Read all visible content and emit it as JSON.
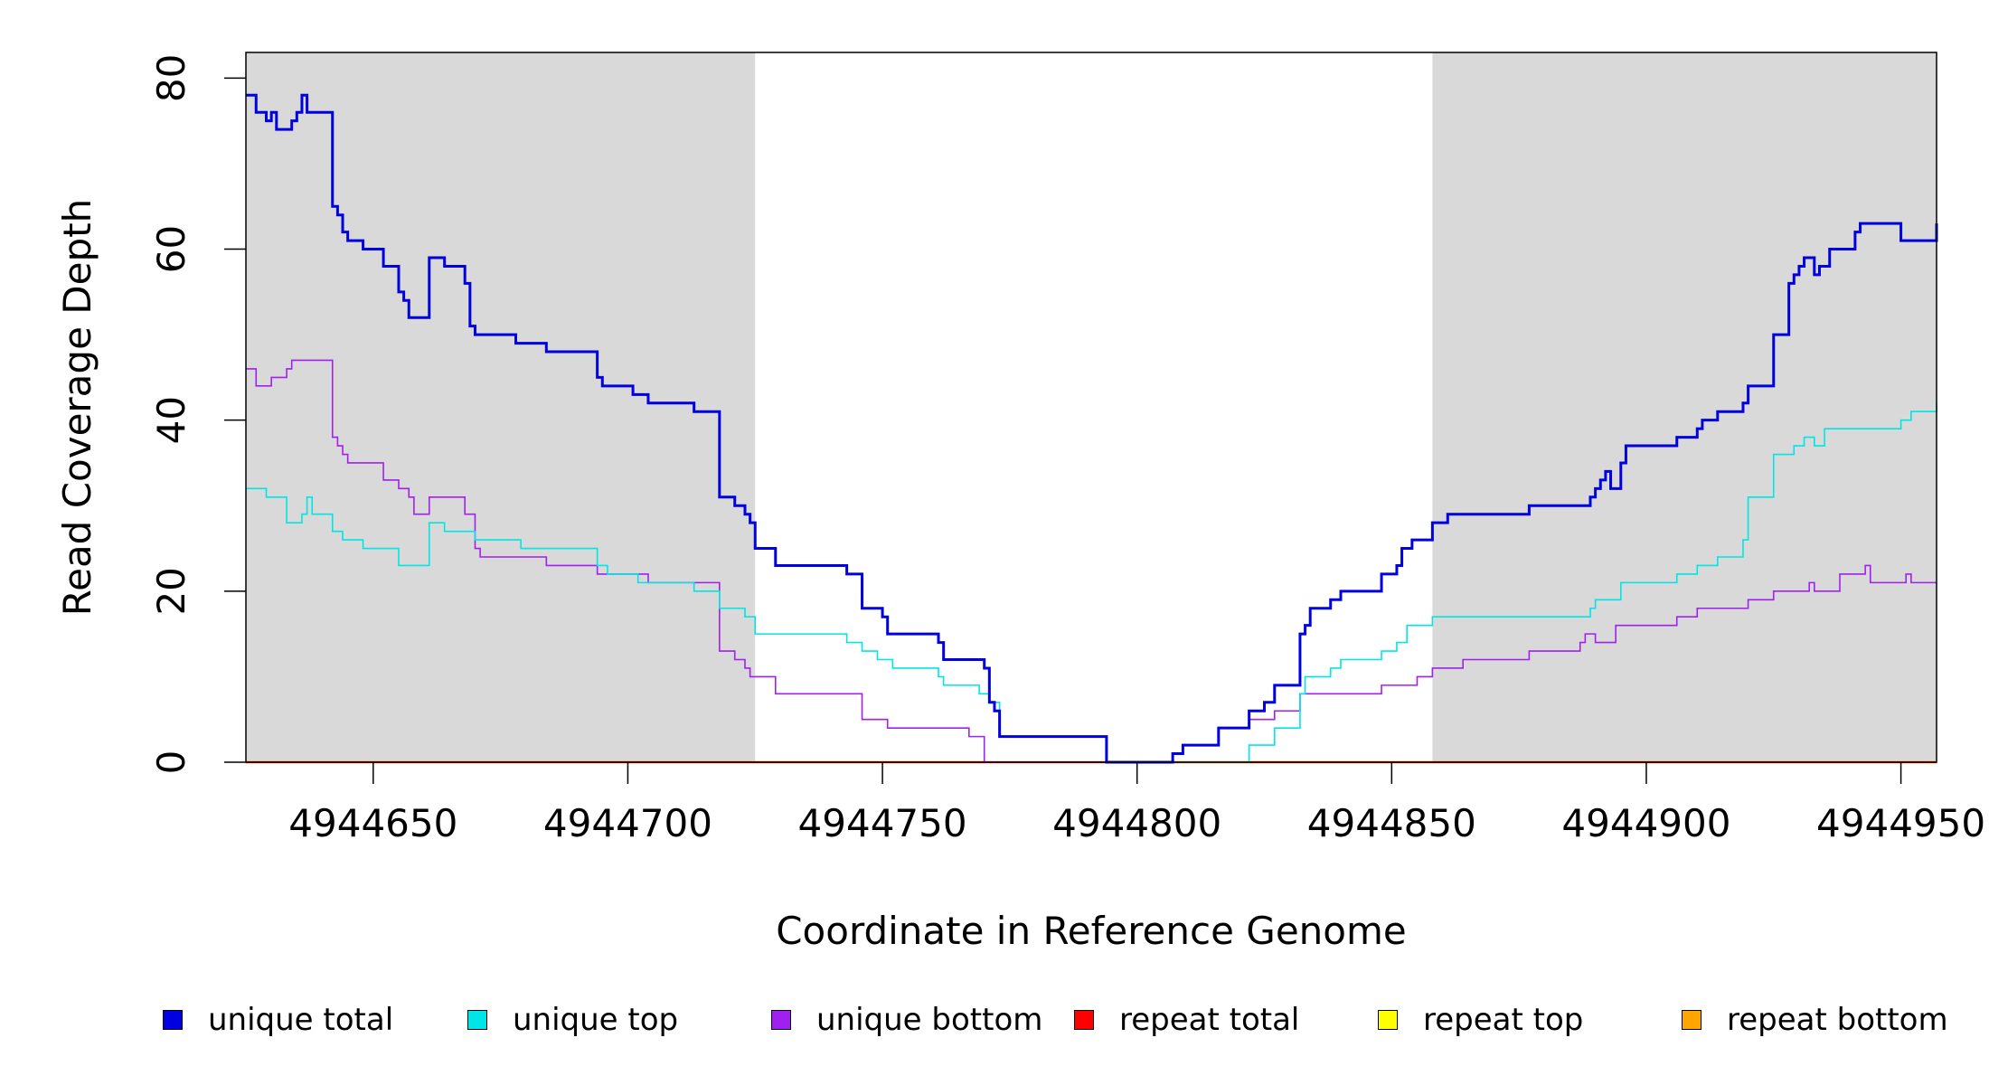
{
  "chart_data": {
    "type": "line",
    "xlabel": "Coordinate in Reference Genome",
    "ylabel": "Read Coverage Depth",
    "xlim": [
      4944625,
      4944957
    ],
    "ylim": [
      0,
      83
    ],
    "x_ticks": [
      4944650,
      4944700,
      4944750,
      4944800,
      4944850,
      4944900,
      4944950
    ],
    "x_tick_labels": [
      "4944650",
      "4944700",
      "4944750",
      "4944800",
      "4944850",
      "4944900",
      "4944950"
    ],
    "y_ticks": [
      0,
      20,
      40,
      60,
      80
    ],
    "y_tick_labels": [
      "0",
      "20",
      "40",
      "60",
      "80"
    ],
    "shaded_regions": [
      [
        4944625,
        4944725
      ],
      [
        4944858,
        4944957
      ]
    ],
    "shade_color": "#d9d9d9",
    "legend_position": "bottom",
    "series": [
      {
        "name": "unique total",
        "color": "#0000e0",
        "x": [
          4944625,
          4944627,
          4944629,
          4944630,
          4944631,
          4944634,
          4944635,
          4944636,
          4944637,
          4944638,
          4944639,
          4944642,
          4944643,
          4944644,
          4944645,
          4944648,
          4944652,
          4944655,
          4944656,
          4944657,
          4944658,
          4944661,
          4944664,
          4944668,
          4944669,
          4944670,
          4944678,
          4944684,
          4944694,
          4944695,
          4944697,
          4944701,
          4944704,
          4944713,
          4944718,
          4944721,
          4944723,
          4944724,
          4944725,
          4944729,
          4944743,
          4944746,
          4944750,
          4944751,
          4944761,
          4944762,
          4944767,
          4944770,
          4944771,
          4944772,
          4944773,
          4944794,
          4944807,
          4944809,
          4944816,
          4944822,
          4944825,
          4944827,
          4944832,
          4944833,
          4944834,
          4944838,
          4944840,
          4944848,
          4944851,
          4944852,
          4944854,
          4944858,
          4944861,
          4944877,
          4944889,
          4944890,
          4944891,
          4944892,
          4944893,
          4944895,
          4944896,
          4944898,
          4944906,
          4944910,
          4944911,
          4944914,
          4944919,
          4944920,
          4944925,
          4944928,
          4944929,
          4944930,
          4944931,
          4944933,
          4944934,
          4944936,
          4944941,
          4944942,
          4944950,
          4944957
        ],
        "y": [
          78,
          76,
          75,
          76,
          74,
          75,
          76,
          78,
          76,
          76,
          76,
          65,
          64,
          62,
          61,
          60,
          58,
          55,
          54,
          52,
          52,
          59,
          58,
          56,
          51,
          50,
          49,
          48,
          45,
          44,
          44,
          43,
          42,
          41,
          31,
          30,
          29,
          28,
          25,
          23,
          22,
          18,
          17,
          15,
          14,
          12,
          12,
          11,
          7,
          6,
          3,
          0,
          1,
          2,
          4,
          6,
          7,
          9,
          15,
          16,
          18,
          19,
          20,
          22,
          23,
          25,
          26,
          28,
          29,
          30,
          31,
          32,
          33,
          34,
          32,
          35,
          37,
          37,
          38,
          39,
          40,
          41,
          42,
          44,
          50,
          56,
          57,
          58,
          59,
          57,
          58,
          60,
          62,
          63,
          61,
          63
        ]
      },
      {
        "name": "unique top",
        "color": "#00e5e5",
        "x": [
          4944625,
          4944629,
          4944633,
          4944636,
          4944637,
          4944638,
          4944642,
          4944644,
          4944648,
          4944655,
          4944661,
          4944664,
          4944670,
          4944679,
          4944694,
          4944696,
          4944702,
          4944704,
          4944713,
          4944718,
          4944723,
          4944725,
          4944743,
          4944746,
          4944749,
          4944752,
          4944761,
          4944762,
          4944769,
          4944770,
          4944771,
          4944773,
          4944794,
          4944807,
          4944822,
          4944827,
          4944832,
          4944833,
          4944838,
          4944840,
          4944848,
          4944851,
          4944853,
          4944858,
          4944864,
          4944889,
          4944890,
          4944895,
          4944906,
          4944910,
          4944914,
          4944919,
          4944920,
          4944925,
          4944929,
          4944931,
          4944933,
          4944935,
          4944950,
          4944952,
          4944957
        ],
        "y": [
          32,
          31,
          28,
          29,
          31,
          29,
          27,
          26,
          25,
          23,
          28,
          27,
          26,
          25,
          23,
          22,
          21,
          21,
          20,
          18,
          17,
          15,
          14,
          13,
          12,
          11,
          10,
          9,
          8,
          8,
          7,
          3,
          0,
          0,
          2,
          4,
          8,
          10,
          11,
          12,
          13,
          14,
          16,
          17,
          17,
          18,
          19,
          21,
          22,
          23,
          24,
          26,
          31,
          36,
          37,
          38,
          37,
          39,
          40,
          41,
          42
        ]
      },
      {
        "name": "unique bottom",
        "color": "#a020f0",
        "x": [
          4944625,
          4944627,
          4944630,
          4944633,
          4944634,
          4944642,
          4944643,
          4944644,
          4944645,
          4944652,
          4944655,
          4944657,
          4944658,
          4944661,
          4944668,
          4944670,
          4944671,
          4944684,
          4944694,
          4944704,
          4944718,
          4944721,
          4944723,
          4944724,
          4944729,
          4944746,
          4944751,
          4944767,
          4944770,
          4944794,
          4944807,
          4944809,
          4944816,
          4944822,
          4944827,
          4944832,
          4944834,
          4944848,
          4944855,
          4944858,
          4944864,
          4944877,
          4944887,
          4944888,
          4944889,
          4944890,
          4944894,
          4944906,
          4944910,
          4944920,
          4944925,
          4944932,
          4944933,
          4944938,
          4944943,
          4944944,
          4944951,
          4944952,
          4944957
        ],
        "y": [
          46,
          44,
          45,
          46,
          47,
          38,
          37,
          36,
          35,
          33,
          32,
          31,
          29,
          31,
          29,
          25,
          24,
          23,
          22,
          21,
          13,
          12,
          11,
          10,
          8,
          5,
          4,
          3,
          0,
          0,
          1,
          2,
          4,
          5,
          6,
          8,
          8,
          9,
          10,
          11,
          12,
          13,
          14,
          15,
          15,
          14,
          16,
          17,
          18,
          19,
          20,
          21,
          20,
          22,
          23,
          21,
          22,
          21,
          21
        ]
      },
      {
        "name": "repeat total",
        "color": "#ff0000",
        "x": [
          4944625,
          4944957
        ],
        "y": [
          0,
          0
        ]
      },
      {
        "name": "repeat top",
        "color": "#ffff00",
        "x": [
          4944625,
          4944957
        ],
        "y": [
          0,
          0
        ]
      },
      {
        "name": "repeat bottom",
        "color": "#ffa500",
        "x": [
          4944625,
          4944957
        ],
        "y": [
          0,
          0
        ]
      }
    ]
  }
}
